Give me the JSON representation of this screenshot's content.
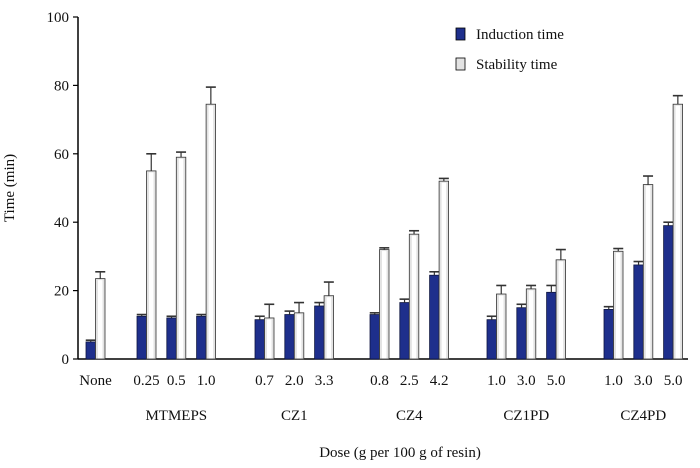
{
  "chart_data": {
    "type": "bar",
    "title": "",
    "xlabel": "Dose (g per 100 g of resin)",
    "ylabel": "Time (min)",
    "ylim": [
      0,
      100
    ],
    "yticks": [
      "0",
      "20",
      "40",
      "60",
      "80",
      "100"
    ],
    "grid": false,
    "legend_position": "top-right",
    "groups": [
      {
        "name": "None",
        "show_name": false,
        "doses": [
          "None"
        ]
      },
      {
        "name": "MTMEPS",
        "show_name": true,
        "doses": [
          "0.25",
          "0.5",
          "1.0"
        ]
      },
      {
        "name": "CZ1",
        "show_name": true,
        "doses": [
          "0.7",
          "2.0",
          "3.3"
        ]
      },
      {
        "name": "CZ4",
        "show_name": true,
        "doses": [
          "0.8",
          "2.5",
          "4.2"
        ]
      },
      {
        "name": "CZ1PD",
        "show_name": true,
        "doses": [
          "1.0",
          "3.0",
          "5.0"
        ]
      },
      {
        "name": "CZ4PD",
        "show_name": true,
        "doses": [
          "1.0",
          "3.0",
          "5.0"
        ]
      }
    ],
    "series": [
      {
        "name": "Induction time",
        "color": "#1e2f8c",
        "values": [
          5,
          12.5,
          12,
          12.5,
          11.5,
          13,
          15.5,
          13,
          16.5,
          24.5,
          11.5,
          15,
          19.5,
          14.5,
          27.5,
          39
        ],
        "errors": [
          0.5,
          0.5,
          0.5,
          0.5,
          1,
          1,
          1,
          0.5,
          1,
          1,
          1,
          1,
          2,
          0.8,
          1,
          1
        ]
      },
      {
        "name": "Stability time",
        "color": "#e3e3e3",
        "values": [
          23.5,
          55,
          59,
          74.5,
          12,
          13.5,
          18.5,
          32,
          36.5,
          52,
          19,
          20.5,
          29,
          31.5,
          51,
          74.5
        ],
        "errors": [
          2,
          5,
          1.5,
          5,
          4,
          3,
          4,
          0.5,
          1,
          0.8,
          2.5,
          1,
          3,
          0.8,
          2.5,
          2.5
        ]
      }
    ]
  }
}
